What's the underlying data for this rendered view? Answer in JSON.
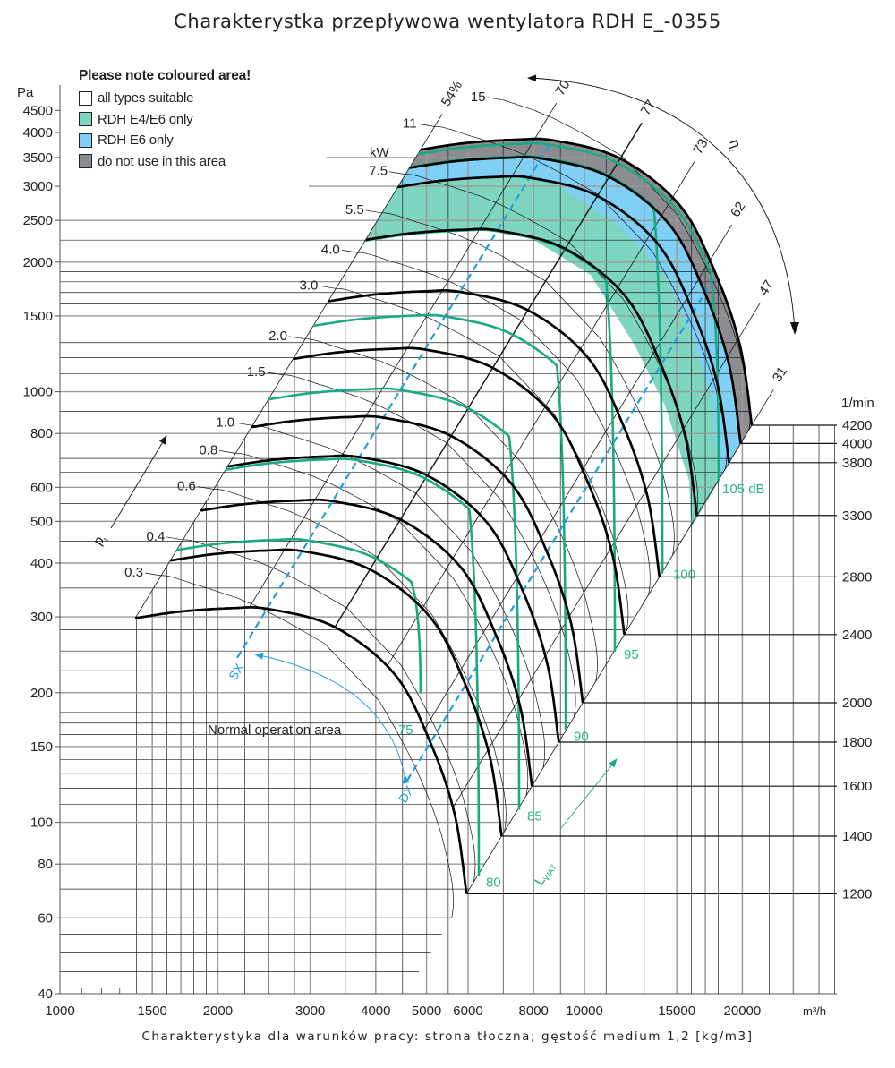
{
  "title": "Charakterystka przepływowa wentylatora RDH E_-0355",
  "footer": "Charakterystyka dla warunków pracy: strona tłoczna; gęstość medium 1,2 [kg/m3]",
  "legend": {
    "title": "Please note coloured area!",
    "items": [
      {
        "label": "all types suitable",
        "color": "#ffffff"
      },
      {
        "label": "RDH E4/E6 only",
        "color": "#7ed6c1"
      },
      {
        "label": "RDH E6 only",
        "color": "#7fd0f4"
      },
      {
        "label": "do not use in this area",
        "color": "#8d8d91"
      }
    ]
  },
  "chart_data": {
    "type": "line",
    "x_axis": {
      "unit": "m³/h",
      "scale": "log",
      "range": [
        1000,
        30000
      ],
      "ticks": [
        1000,
        1500,
        2000,
        3000,
        4000,
        5000,
        6000,
        8000,
        10000,
        15000,
        20000
      ],
      "tick_labels": [
        "1000",
        "1500",
        "2000",
        "3000",
        "4000",
        "5000",
        "6000",
        "8000",
        "10000",
        "15000",
        "20000"
      ],
      "grid": [
        1100,
        1200,
        1300,
        1400,
        1500,
        1600,
        1700,
        1800,
        1900,
        2000,
        2250,
        2500,
        2800,
        3000,
        3500,
        4000,
        4500,
        5000,
        5500,
        6000,
        7000,
        8000,
        9000,
        10000,
        11000,
        12000,
        13000,
        14000,
        15000,
        16000,
        17000,
        18000,
        20000,
        22500,
        25000,
        28000,
        30000
      ]
    },
    "y_axis": {
      "unit": "Pa",
      "scale": "log",
      "range": [
        40,
        4500
      ],
      "ticks": [
        4500,
        4000,
        3500,
        3000,
        2500,
        2000,
        1500,
        1000,
        800,
        600,
        500,
        400,
        300,
        200,
        150,
        100,
        80,
        60,
        40
      ],
      "tick_labels": [
        "4500",
        "4000",
        "3500",
        "3000",
        "2500",
        "2000",
        "1500",
        "1000",
        "800",
        "600",
        "500",
        "400",
        "300",
        "200",
        "150",
        "100",
        "80",
        "60",
        "40"
      ],
      "grid": [
        45,
        50,
        55,
        60,
        70,
        80,
        90,
        100,
        110,
        120,
        130,
        140,
        150,
        160,
        170,
        180,
        200,
        225,
        250,
        280,
        300,
        350,
        400,
        450,
        500,
        550,
        600,
        650,
        700,
        800,
        900,
        1000,
        1100,
        1200,
        1300,
        1400,
        1500,
        1600,
        1700,
        1800,
        1900,
        2000,
        2250,
        2500,
        3000,
        3500
      ]
    },
    "grid": true,
    "reference_curve": {
      "rpm": 4200,
      "points": [
        [
          4870,
          3650,
          54
        ],
        [
          5930,
          3780,
          60
        ],
        [
          7420,
          3850,
          67
        ],
        [
          8780,
          3830,
          71
        ],
        [
          11700,
          3480,
          77
        ],
        [
          15230,
          2700,
          72
        ],
        [
          17820,
          1870,
          59
        ],
        [
          19810,
          1275,
          46
        ],
        [
          20850,
          836,
          31
        ]
      ]
    },
    "speed_unit": "1/min",
    "speed_curves": [
      {
        "rpm": 1200,
        "label": "1200"
      },
      {
        "rpm": 1400,
        "label": "1400"
      },
      {
        "rpm": 1600,
        "label": "1600"
      },
      {
        "rpm": 1800,
        "label": "1800"
      },
      {
        "rpm": 2000,
        "label": "2000"
      },
      {
        "rpm": 2400,
        "label": "2400"
      },
      {
        "rpm": 2800,
        "label": "2800"
      },
      {
        "rpm": 3300,
        "label": "3300"
      },
      {
        "rpm": 3800,
        "label": "3800"
      },
      {
        "rpm": 4000,
        "label": "4000"
      },
      {
        "rpm": 4200,
        "label": "4200"
      }
    ],
    "noise_curves": {
      "unit": "dB",
      "color": "#19a983",
      "items": [
        {
          "label": "75",
          "rpm": 1440,
          "end": [
            4870,
            199
          ]
        },
        {
          "label": "80",
          "rpm": 1785,
          "end": [
            6290,
            75
          ]
        },
        {
          "label": "85",
          "rpm": 2154,
          "end": [
            7506,
            107
          ]
        },
        {
          "label": "90",
          "rpm": 2622,
          "end": [
            9210,
            164
          ]
        },
        {
          "label": "95",
          "rpm": 3293,
          "end": [
            11430,
            249
          ]
        },
        {
          "label": "100",
          "rpm": 4009,
          "end": [
            14080,
            379
          ]
        },
        {
          "label": "105 dB",
          "rpm": 4150,
          "end": [
            18030,
            621
          ]
        }
      ]
    },
    "efficiency_lines": {
      "symbol": "η",
      "symbol_sub": "r",
      "items": [
        {
          "label": "54%",
          "q_at_4200": 4870
        },
        {
          "label": "70",
          "q_at_4200": 8055
        },
        {
          "label": "77",
          "q_at_4200": 11700
        },
        {
          "label": "73",
          "q_at_4200": 14810
        },
        {
          "label": "62",
          "q_at_4200": 17330
        },
        {
          "label": "47",
          "q_at_4200": 19660
        },
        {
          "label": "31",
          "q_at_4200": 20850
        }
      ]
    },
    "power_lines": {
      "unit": "kW",
      "items": [
        {
          "value": 0.3,
          "label": "0.3"
        },
        {
          "value": 0.4,
          "label": "0.4"
        },
        {
          "value": 0.6,
          "label": "0.6"
        },
        {
          "value": 0.8,
          "label": "0.8"
        },
        {
          "value": 1.0,
          "label": "1.0"
        },
        {
          "value": 1.5,
          "label": "1.5"
        },
        {
          "value": 2.0,
          "label": "2.0"
        },
        {
          "value": 3.0,
          "label": "3.0"
        },
        {
          "value": 4.0,
          "label": "4.0"
        },
        {
          "value": 5.5,
          "label": "5.5"
        },
        {
          "value": 7.5,
          "label": "7.5"
        },
        {
          "value": 11,
          "label": "11"
        },
        {
          "value": 15,
          "label": "15"
        }
      ]
    },
    "system_lines": {
      "color": "#1e9fe3",
      "items": [
        {
          "label": "SX",
          "point": [
            2177,
            241
          ]
        },
        {
          "label": "DX",
          "point": [
            4592,
            125
          ]
        }
      ]
    },
    "regions": [
      {
        "legend": "RDH E4/E6 only",
        "color": "#7ed6c1",
        "follows_rpm": 3300,
        "until_q": 7900,
        "then": [
          [
            10280,
            1868
          ],
          [
            12510,
            1274
          ],
          [
            14240,
            929
          ],
          [
            15840,
            621
          ],
          [
            15960,
            482
          ]
        ]
      },
      {
        "legend": "RDH E6 only",
        "color": "#7fd0f4",
        "follows_rpm": 3800,
        "until_q": 8784,
        "then": [
          [
            11700,
            2420
          ],
          [
            14240,
            1868
          ],
          [
            16280,
            1274
          ],
          [
            17610,
            929
          ],
          [
            18030,
            621
          ]
        ]
      },
      {
        "legend": "do not use in this area",
        "color": "#8d8d91",
        "follows_rpm": 4000,
        "until_q": 99999,
        "then": []
      }
    ],
    "annotations": {
      "normal_area": "Normal operation area",
      "pressure_symbol": "p",
      "pressure_sub": "t",
      "sound_symbol": "L",
      "sound_sub": "WA7"
    }
  }
}
